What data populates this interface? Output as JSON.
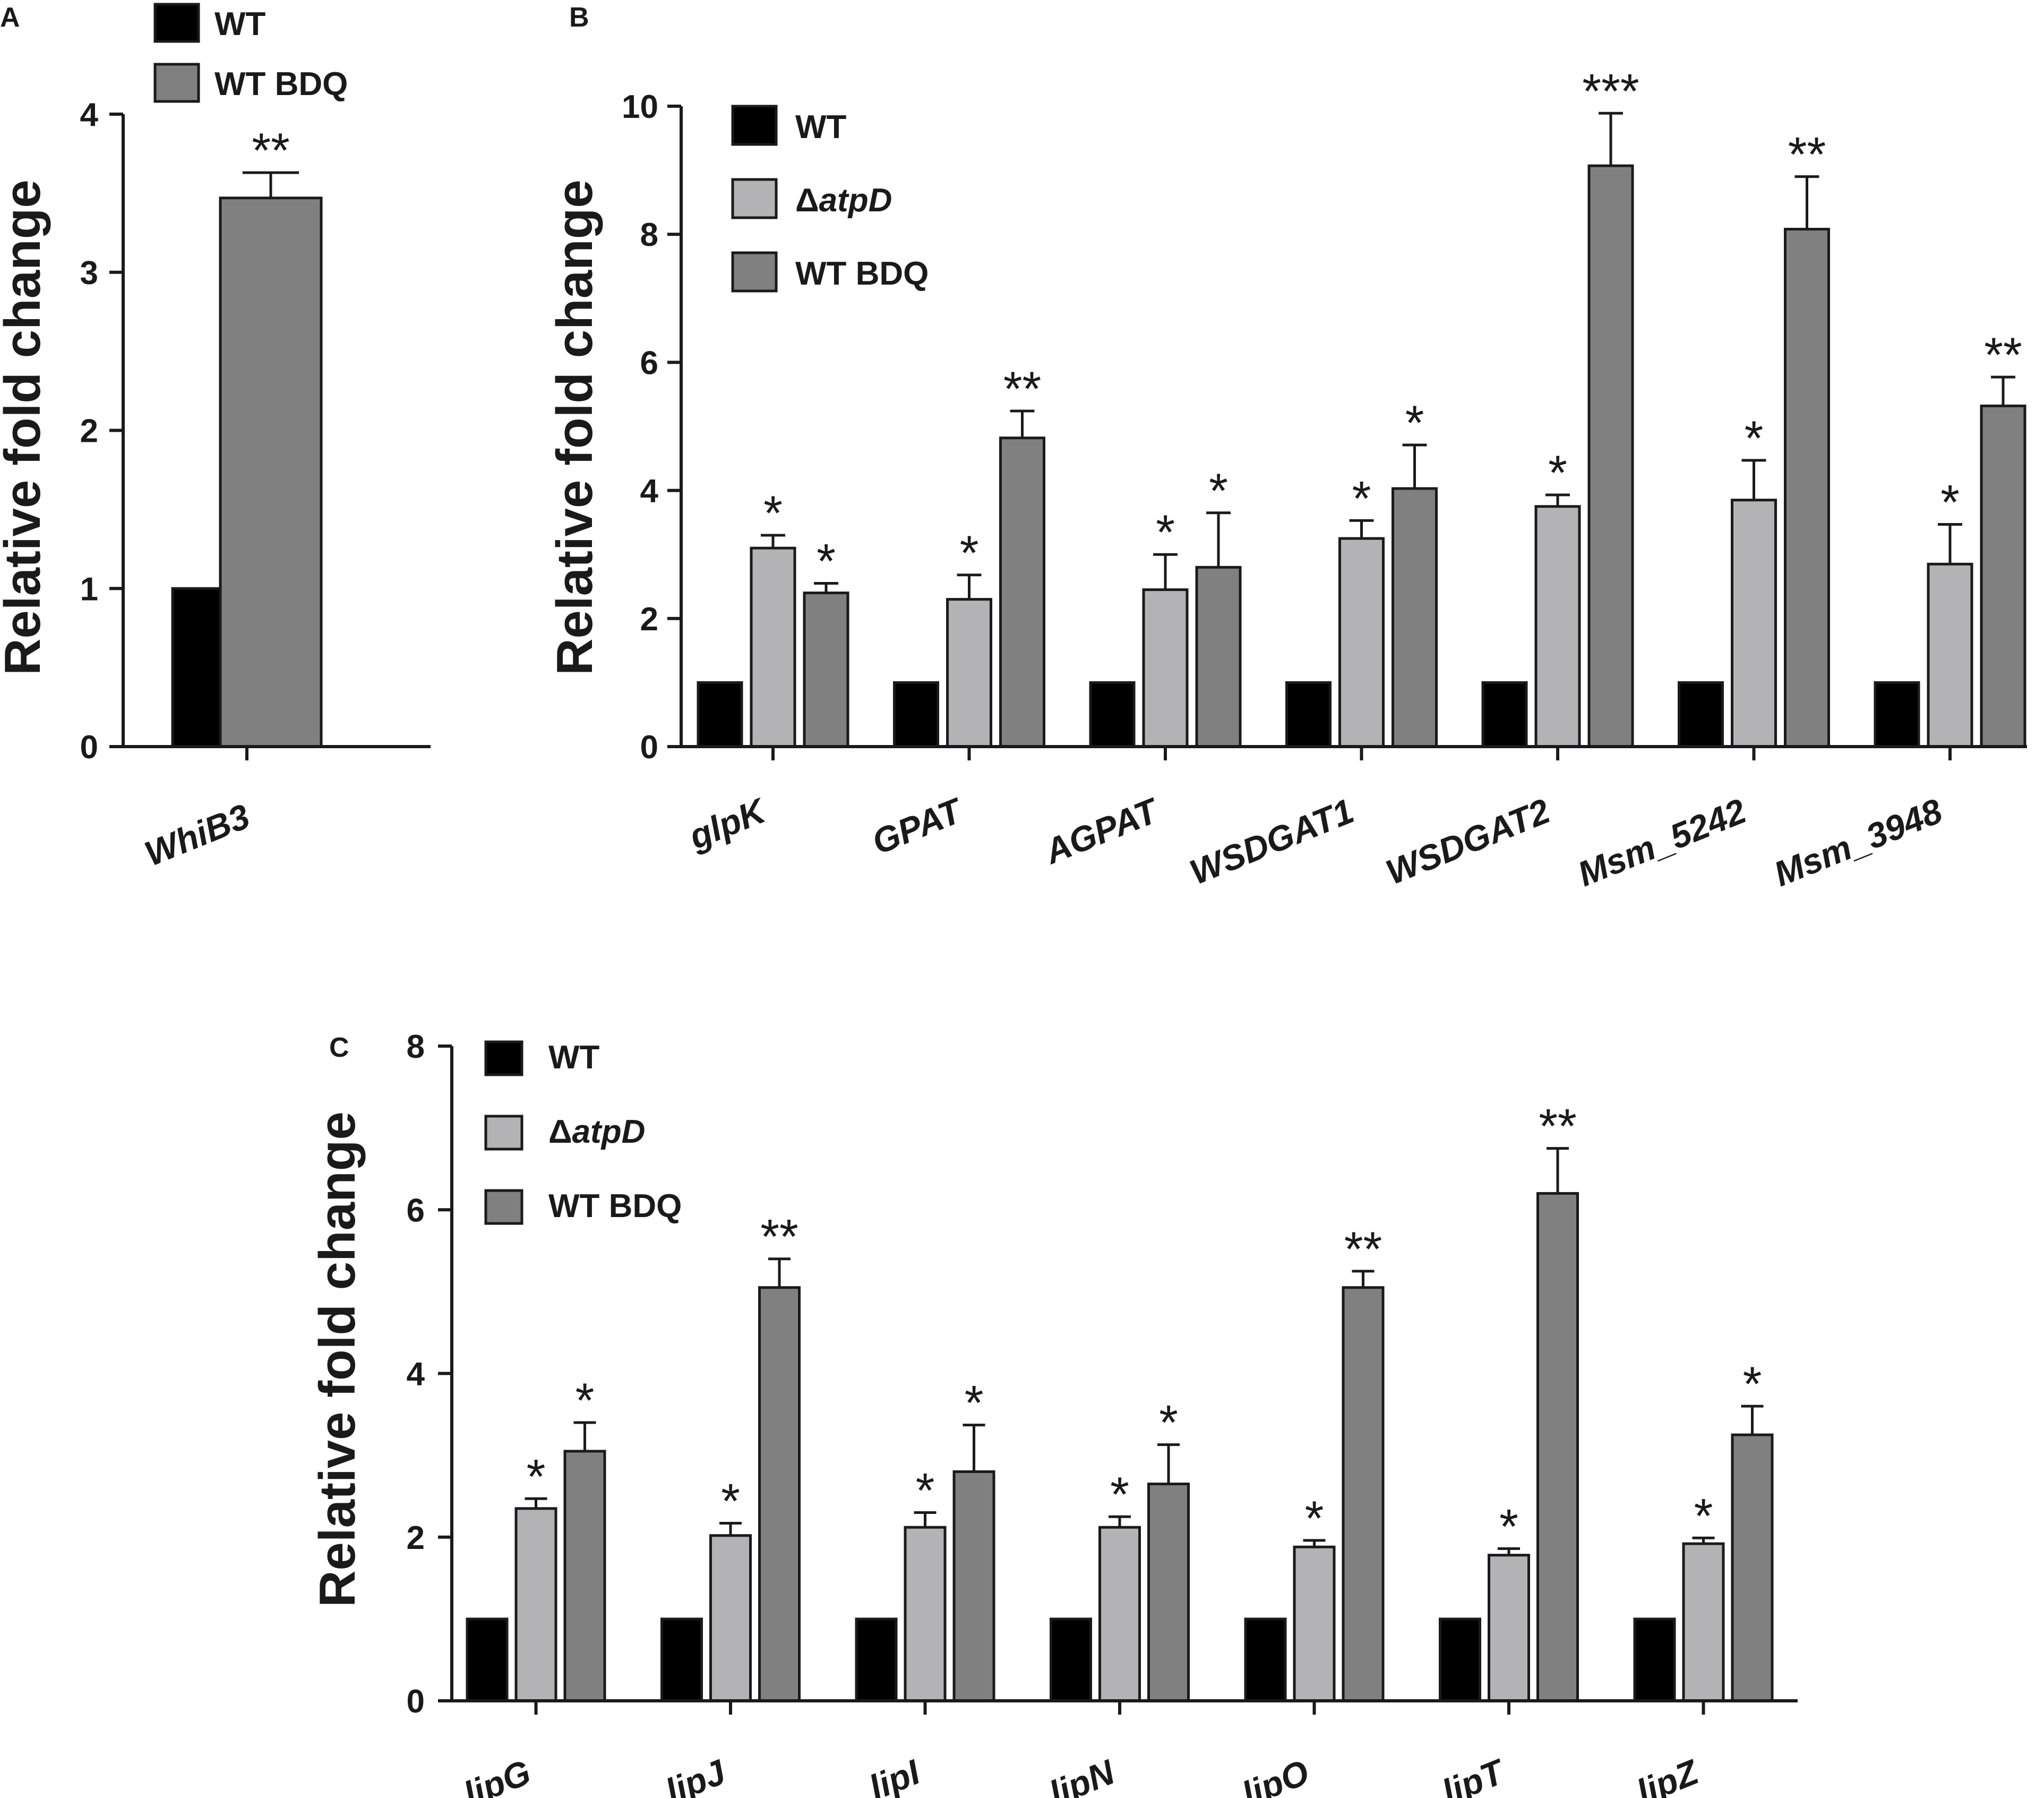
{
  "colors": {
    "WT": "#000000",
    "atpD": "#b3b3b6",
    "WT_BDQ": "#808080"
  },
  "chart_data": [
    {
      "panel": "A",
      "type": "bar",
      "ylabel": "Relative fold change",
      "ylim": [
        0,
        4
      ],
      "yticks": [
        "0",
        "1",
        "2",
        "3",
        "4"
      ],
      "legend": [
        {
          "key": "WT",
          "label": "WT"
        },
        {
          "key": "WT_BDQ",
          "label": "WT BDQ"
        }
      ],
      "categories": [
        "WhiB3"
      ],
      "series": [
        {
          "name": "WT",
          "key": "WT",
          "values": [
            1.0
          ],
          "errors": [
            0
          ],
          "sig": [
            ""
          ]
        },
        {
          "name": "WT BDQ",
          "key": "WT_BDQ",
          "values": [
            3.47
          ],
          "errors": [
            0.16
          ],
          "sig": [
            "**"
          ]
        }
      ]
    },
    {
      "panel": "B",
      "type": "bar",
      "ylabel": "Relative fold change",
      "ylim": [
        0,
        10
      ],
      "yticks": [
        "0",
        "2",
        "4",
        "6",
        "8",
        "10"
      ],
      "legend": [
        {
          "key": "WT",
          "label": "WT",
          "delta": "",
          "italic": ""
        },
        {
          "key": "atpD",
          "label": "",
          "delta": "Δ",
          "italic": "atpD"
        },
        {
          "key": "WT_BDQ",
          "label": "WT BDQ",
          "delta": "",
          "italic": ""
        }
      ],
      "categories": [
        "glpK",
        "GPAT",
        "AGPAT",
        "WSDGAT1",
        "WSDGAT2",
        "Msm_5242",
        "Msm_3948"
      ],
      "series": [
        {
          "name": "WT",
          "key": "WT",
          "values": [
            1,
            1,
            1,
            1,
            1,
            1,
            1
          ],
          "errors": [
            0,
            0,
            0,
            0,
            0,
            0,
            0
          ],
          "sig": [
            "",
            "",
            "",
            "",
            "",
            "",
            ""
          ]
        },
        {
          "name": "ΔatpD",
          "key": "atpD",
          "values": [
            3.1,
            2.3,
            2.45,
            3.25,
            3.75,
            3.85,
            2.85
          ],
          "errors": [
            0.2,
            0.38,
            0.55,
            0.28,
            0.18,
            0.62,
            0.62
          ],
          "sig": [
            "*",
            "*",
            "*",
            "*",
            "*",
            "*",
            "*"
          ]
        },
        {
          "name": "WT BDQ",
          "key": "WT_BDQ",
          "values": [
            2.4,
            4.82,
            2.8,
            4.03,
            9.07,
            8.08,
            5.32
          ],
          "errors": [
            0.15,
            0.42,
            0.85,
            0.68,
            0.82,
            0.82,
            0.45
          ],
          "sig": [
            "*",
            "**",
            "*",
            "*",
            "***",
            "**",
            "**"
          ]
        }
      ]
    },
    {
      "panel": "C",
      "type": "bar",
      "ylabel": "Relative fold change",
      "ylim": [
        0,
        8
      ],
      "yticks": [
        "0",
        "2",
        "4",
        "6",
        "8"
      ],
      "legend": [
        {
          "key": "WT",
          "label": "WT",
          "delta": "",
          "italic": ""
        },
        {
          "key": "atpD",
          "label": "",
          "delta": "Δ",
          "italic": "atpD"
        },
        {
          "key": "WT_BDQ",
          "label": "WT BDQ",
          "delta": "",
          "italic": ""
        }
      ],
      "categories": [
        "lipG",
        "lipJ",
        "lipI",
        "lipN",
        "lipO",
        "lipT",
        "lipZ"
      ],
      "series": [
        {
          "name": "WT",
          "key": "WT",
          "values": [
            1,
            1,
            1,
            1,
            1,
            1,
            1
          ],
          "errors": [
            0,
            0,
            0,
            0,
            0,
            0,
            0
          ],
          "sig": [
            "",
            "",
            "",
            "",
            "",
            "",
            ""
          ]
        },
        {
          "name": "ΔatpD",
          "key": "atpD",
          "values": [
            2.35,
            2.02,
            2.12,
            2.12,
            1.88,
            1.78,
            1.92
          ],
          "errors": [
            0.12,
            0.15,
            0.18,
            0.13,
            0.08,
            0.08,
            0.07
          ],
          "sig": [
            "*",
            "*",
            "*",
            "*",
            "*",
            "*",
            "*"
          ]
        },
        {
          "name": "WT BDQ",
          "key": "WT_BDQ",
          "values": [
            3.05,
            5.05,
            2.8,
            2.65,
            5.05,
            6.2,
            3.25
          ],
          "errors": [
            0.35,
            0.35,
            0.57,
            0.48,
            0.2,
            0.55,
            0.35
          ],
          "sig": [
            "*",
            "**",
            "*",
            "*",
            "**",
            "**",
            "*"
          ]
        }
      ]
    }
  ]
}
